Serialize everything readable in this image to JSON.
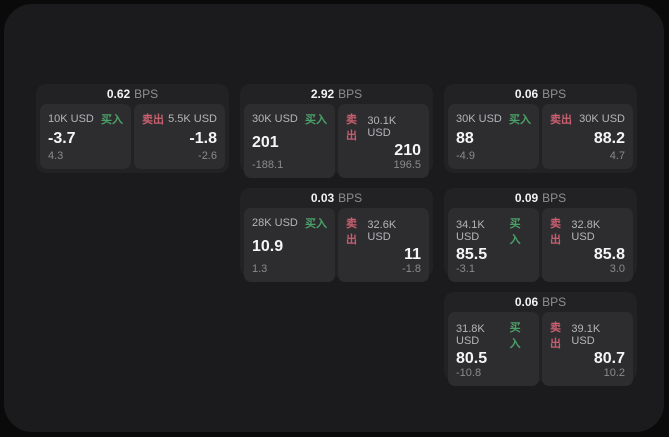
{
  "labels": {
    "bps_unit": "BPS",
    "buy": "买入",
    "sell": "卖出"
  },
  "colors": {
    "page_bg": "#0a0a0a",
    "panel_bg": "#1b1b1d",
    "card_bg": "#222224",
    "tile_bg": "#2d2d30",
    "buy_green": "#4ba167",
    "sell_red": "#c75f6e",
    "value_white": "#f5f5f5",
    "muted_gray": "#8a8a8d"
  },
  "cards": [
    {
      "bps": "0.62",
      "buy": {
        "size": "10K USD",
        "price": "-3.7",
        "change": "4.3"
      },
      "sell": {
        "size": "5.5K USD",
        "price": "-1.8",
        "change": "-2.6"
      }
    },
    {
      "bps": "2.92",
      "buy": {
        "size": "30K USD",
        "price": "201",
        "change": "-188.1"
      },
      "sell": {
        "size": "30.1K USD",
        "price": "210",
        "change": "196.5"
      }
    },
    {
      "bps": "0.06",
      "buy": {
        "size": "30K USD",
        "price": "88",
        "change": "-4.9"
      },
      "sell": {
        "size": "30K USD",
        "price": "88.2",
        "change": "4.7"
      }
    },
    {
      "bps": "0.03",
      "buy": {
        "size": "28K USD",
        "price": "10.9",
        "change": "1.3"
      },
      "sell": {
        "size": "32.6K USD",
        "price": "11",
        "change": "-1.8"
      }
    },
    {
      "bps": "0.09",
      "buy": {
        "size": "34.1K USD",
        "price": "85.5",
        "change": "-3.1"
      },
      "sell": {
        "size": "32.8K USD",
        "price": "85.8",
        "change": "3.0"
      }
    },
    {
      "bps": "0.06",
      "buy": {
        "size": "31.8K USD",
        "price": "80.5",
        "change": "-10.8"
      },
      "sell": {
        "size": "39.1K USD",
        "price": "80.7",
        "change": "10.2"
      }
    }
  ]
}
